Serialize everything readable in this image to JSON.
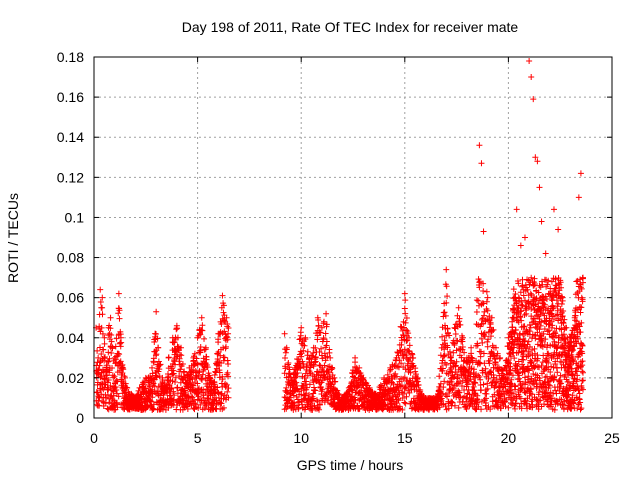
{
  "chart_data": {
    "type": "scatter",
    "title": "Day 198 of 2011, Rate Of TEC Index for receiver mate",
    "xlabel": "GPS time / hours",
    "ylabel": "ROTI / TECUs",
    "xlim": [
      0,
      25
    ],
    "ylim": [
      0,
      0.18
    ],
    "x_ticks": [
      "0",
      "5",
      "10",
      "15",
      "20",
      "25"
    ],
    "y_ticks": [
      "0",
      "0.02",
      "0.04",
      "0.06",
      "0.08",
      "0.1",
      "0.12",
      "0.14",
      "0.16",
      "0.18"
    ],
    "grid": true,
    "marker": "plus",
    "color": "#ff0000",
    "x": [
      0.1,
      0.2,
      0.3,
      0.35,
      0.4,
      0.5,
      0.6,
      0.7,
      0.8,
      1.0,
      1.2,
      1.3,
      1.4,
      1.5,
      1.6,
      1.8,
      2.0,
      2.2,
      2.5,
      2.8,
      3.0,
      3.1,
      3.3,
      3.5,
      3.6,
      3.8,
      4.0,
      4.2,
      4.4,
      4.6,
      4.8,
      5.0,
      5.2,
      5.4,
      5.6,
      5.8,
      6.0,
      6.2,
      6.4,
      9.2,
      9.3,
      9.5,
      9.7,
      10.0,
      10.2,
      10.4,
      10.6,
      10.8,
      11.0,
      11.2,
      11.4,
      11.6,
      11.8,
      12.0,
      12.3,
      12.6,
      13.0,
      13.3,
      13.6,
      14.0,
      14.3,
      14.6,
      15.0,
      15.2,
      15.4,
      15.6,
      15.8,
      16.0,
      16.3,
      16.6,
      17.0,
      17.2,
      17.4,
      17.6,
      17.8,
      18.0,
      18.2,
      18.4,
      18.6,
      18.7,
      18.8,
      19.0,
      19.2,
      19.4,
      19.6,
      19.8,
      20.0,
      20.2,
      20.4,
      20.5,
      20.6,
      20.8,
      21.0,
      21.1,
      21.2,
      21.3,
      21.4,
      21.5,
      21.6,
      21.8,
      22.0,
      22.2,
      22.4,
      22.6,
      22.8,
      23.0,
      23.2,
      23.4,
      23.5,
      23.6
    ],
    "y": [
      0.045,
      0.03,
      0.064,
      0.055,
      0.06,
      0.04,
      0.025,
      0.045,
      0.05,
      0.03,
      0.062,
      0.04,
      0.025,
      0.02,
      0.015,
      0.012,
      0.01,
      0.015,
      0.02,
      0.025,
      0.053,
      0.035,
      0.02,
      0.015,
      0.03,
      0.04,
      0.046,
      0.035,
      0.02,
      0.025,
      0.03,
      0.04,
      0.05,
      0.035,
      0.02,
      0.018,
      0.042,
      0.061,
      0.05,
      0.042,
      0.035,
      0.02,
      0.025,
      0.045,
      0.04,
      0.03,
      0.035,
      0.05,
      0.045,
      0.052,
      0.03,
      0.02,
      0.012,
      0.01,
      0.015,
      0.03,
      0.02,
      0.015,
      0.012,
      0.02,
      0.025,
      0.03,
      0.062,
      0.04,
      0.03,
      0.02,
      0.012,
      0.01,
      0.008,
      0.012,
      0.074,
      0.03,
      0.045,
      0.055,
      0.04,
      0.03,
      0.035,
      0.02,
      0.136,
      0.127,
      0.093,
      0.06,
      0.05,
      0.035,
      0.03,
      0.025,
      0.04,
      0.05,
      0.104,
      0.06,
      0.086,
      0.09,
      0.178,
      0.17,
      0.159,
      0.13,
      0.128,
      0.115,
      0.098,
      0.082,
      0.062,
      0.104,
      0.094,
      0.06,
      0.045,
      0.04,
      0.05,
      0.11,
      0.122,
      0.07
    ]
  }
}
